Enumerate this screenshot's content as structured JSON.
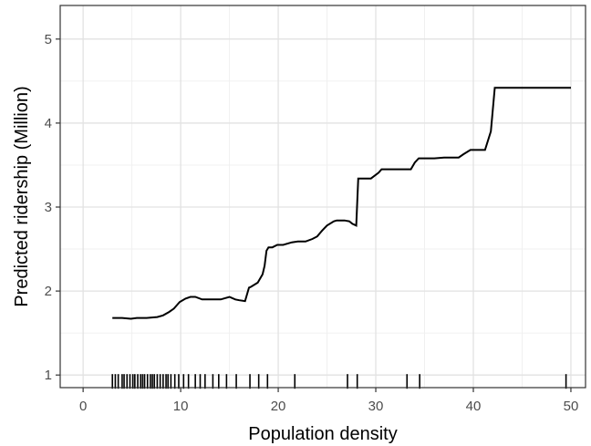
{
  "chart_data": {
    "type": "line",
    "xlabel": "Population density",
    "ylabel": "Predicted ridership (Million)",
    "xlim": [
      -2.35,
      51.5
    ],
    "ylim": [
      0.85,
      5.4
    ],
    "x_ticks": [
      0,
      10,
      20,
      30,
      40,
      50
    ],
    "y_ticks": [
      1,
      2,
      3,
      4,
      5
    ],
    "x_tick_labels": [
      "0",
      "10",
      "20",
      "30",
      "40",
      "50"
    ],
    "y_tick_labels": [
      "1",
      "2",
      "3",
      "4",
      "5"
    ],
    "grid": true,
    "series": [
      {
        "x": [
          3.0,
          4.0,
          4.9,
          5.5,
          6.5,
          7.6,
          8.2,
          8.8,
          9.3,
          9.9,
          10.5,
          11.0,
          11.5,
          12.2,
          13.0,
          14.1,
          15.0,
          15.6,
          16.0,
          16.6,
          17.0,
          17.2,
          17.9,
          18.4,
          18.6,
          18.8,
          19.0,
          19.4,
          19.9,
          20.5,
          21.4,
          22.0,
          22.8,
          23.5,
          24.0,
          24.5,
          25.0,
          25.7,
          26.0,
          26.8,
          27.3,
          27.6,
          28.0,
          28.2,
          29.5,
          30.3,
          30.6,
          32.0,
          33.6,
          34.0,
          34.4,
          36.0,
          37.0,
          38.5,
          39.0,
          39.7,
          41.2,
          41.8,
          42.2,
          43.0,
          50.0
        ],
        "y": [
          1.68,
          1.68,
          1.67,
          1.68,
          1.68,
          1.69,
          1.71,
          1.75,
          1.79,
          1.87,
          1.91,
          1.93,
          1.93,
          1.9,
          1.9,
          1.9,
          1.93,
          1.9,
          1.89,
          1.88,
          2.04,
          2.05,
          2.1,
          2.2,
          2.3,
          2.48,
          2.52,
          2.52,
          2.55,
          2.55,
          2.58,
          2.59,
          2.59,
          2.62,
          2.65,
          2.72,
          2.78,
          2.83,
          2.84,
          2.84,
          2.83,
          2.8,
          2.78,
          3.34,
          3.34,
          3.41,
          3.45,
          3.45,
          3.45,
          3.53,
          3.58,
          3.58,
          3.59,
          3.59,
          3.63,
          3.68,
          3.68,
          3.9,
          4.42,
          4.42,
          4.42
        ]
      }
    ],
    "rug": [
      3.0,
      3.3,
      3.6,
      4.0,
      4.2,
      4.5,
      4.8,
      5.1,
      5.3,
      5.6,
      5.9,
      6.1,
      6.3,
      6.6,
      6.9,
      7.1,
      7.3,
      7.6,
      7.9,
      8.2,
      8.5,
      8.7,
      9.0,
      9.4,
      9.8,
      10.3,
      10.8,
      11.5,
      12.0,
      12.5,
      13.3,
      13.9,
      14.7,
      15.7,
      17.1,
      18.0,
      18.9,
      21.7,
      27.1,
      28.1,
      33.2,
      34.5,
      49.5
    ]
  }
}
